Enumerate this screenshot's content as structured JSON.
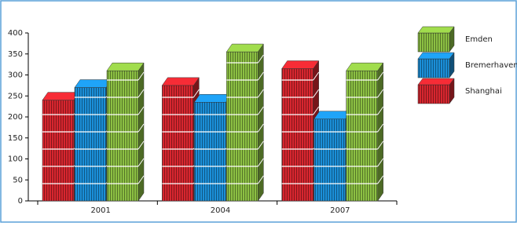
{
  "chart_data": {
    "type": "pictorial-bar",
    "categories": [
      "2001",
      "2004",
      "2007"
    ],
    "series": [
      {
        "name": "Shanghai",
        "color": "#d7262f",
        "values": [
          240,
          275,
          315
        ]
      },
      {
        "name": "Bremerhaven",
        "color": "#1b8fd8",
        "values": [
          270,
          235,
          195
        ]
      },
      {
        "name": "Emden",
        "color": "#8cc043",
        "values": [
          310,
          355,
          310
        ]
      }
    ],
    "ylim": [
      0,
      400
    ],
    "yticks": [
      0,
      50,
      100,
      150,
      200,
      250,
      300,
      350,
      400
    ]
  }
}
